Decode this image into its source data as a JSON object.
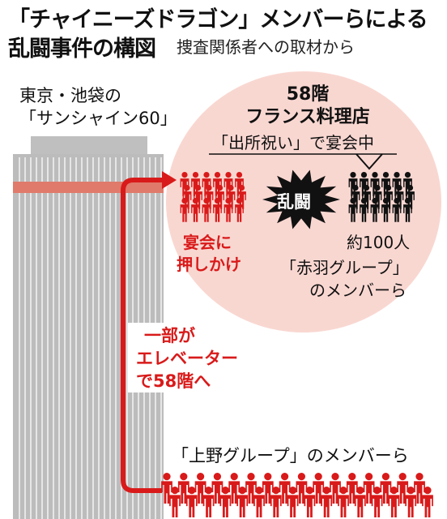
{
  "title": {
    "line1": "「チャイニーズドラゴン」メンバーらによる",
    "line2": "乱闘事件の構図",
    "source": "捜査関係者への取材から"
  },
  "building": {
    "label_line1": "東京・池袋の",
    "label_line2": "「サンシャイン60」"
  },
  "restaurant": {
    "floor": "58階",
    "name": "フランス料理店",
    "party": "「出所祝い」で宴会中"
  },
  "clash": {
    "label": "乱闘"
  },
  "attackers": {
    "label_line1": "宴会に",
    "label_line2": "押しかけ"
  },
  "defenders": {
    "count": "約100人",
    "group_line1": "「赤羽グループ」",
    "group_line2": "のメンバーら"
  },
  "route": {
    "line1": "一部が",
    "line2": "エレベーター",
    "line3": "で58階へ"
  },
  "ueno_group": {
    "label": "「上野グループ」のメンバーら"
  },
  "colors": {
    "red": "#d91a1a",
    "pink": "#f9d7d1",
    "black": "#111111"
  }
}
